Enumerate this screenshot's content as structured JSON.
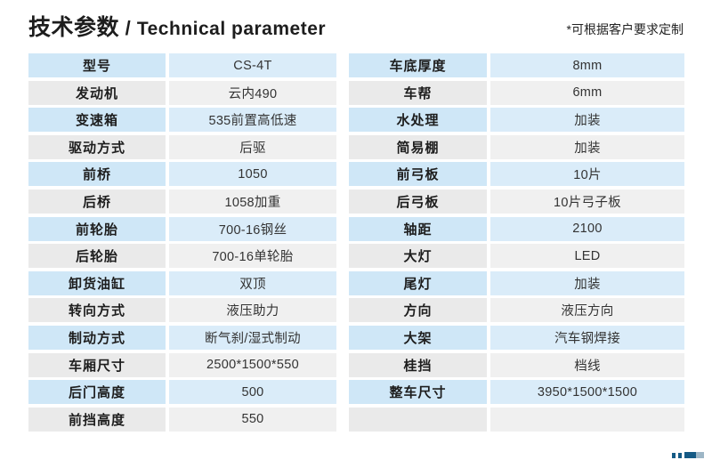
{
  "header": {
    "title_zh": "技术参数",
    "title_separator": " / ",
    "title_en": "Technical parameter",
    "note": "*可根据客户要求定制"
  },
  "colors": {
    "row_blue_label": "#cfe7f7",
    "row_blue_value": "#daecf9",
    "row_gray_label": "#eaeaea",
    "row_gray_value": "#f0f0f0",
    "logo_blue": "#155a85",
    "text_dark": "#1d1d1d"
  },
  "left_table": {
    "rows": [
      {
        "label": "型号",
        "value": "CS-4T"
      },
      {
        "label": "发动机",
        "value": "云内490"
      },
      {
        "label": "变速箱",
        "value": "535前置高低速"
      },
      {
        "label": "驱动方式",
        "value": "后驱"
      },
      {
        "label": "前桥",
        "value": "1050"
      },
      {
        "label": "后桥",
        "value": "1058加重"
      },
      {
        "label": "前轮胎",
        "value": "700-16钢丝"
      },
      {
        "label": "后轮胎",
        "value": "700-16单轮胎"
      },
      {
        "label": "卸货油缸",
        "value": "双顶"
      },
      {
        "label": "转向方式",
        "value": "液压助力"
      },
      {
        "label": "制动方式",
        "value": "断气刹/湿式制动"
      },
      {
        "label": "车厢尺寸",
        "value": "2500*1500*550"
      },
      {
        "label": "后门高度",
        "value": "500"
      },
      {
        "label": "前挡高度",
        "value": "550"
      }
    ]
  },
  "right_table": {
    "rows": [
      {
        "label": "车底厚度",
        "value": "8mm"
      },
      {
        "label": "车帮",
        "value": "6mm"
      },
      {
        "label": "水处理",
        "value": "加装"
      },
      {
        "label": "简易棚",
        "value": "加装"
      },
      {
        "label": "前弓板",
        "value": "10片"
      },
      {
        "label": "后弓板",
        "value": "10片弓子板"
      },
      {
        "label": "轴距",
        "value": "2100"
      },
      {
        "label": "大灯",
        "value": "LED"
      },
      {
        "label": "尾灯",
        "value": "加装"
      },
      {
        "label": "方向",
        "value": "液压方向"
      },
      {
        "label": "大架",
        "value": "汽车钢焊接"
      },
      {
        "label": "桂挡",
        "value": "档线"
      },
      {
        "label": "整车尺寸",
        "value": "3950*1500*1500"
      },
      {
        "label": "",
        "value": ""
      }
    ]
  }
}
